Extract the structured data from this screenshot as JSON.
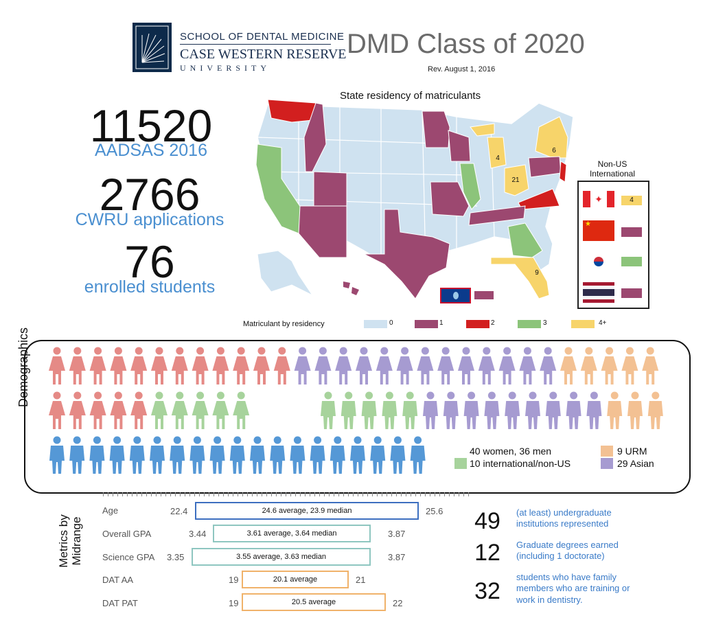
{
  "header": {
    "school": "SCHOOL OF DENTAL MEDICINE",
    "university_line1": "CASE WESTERN RESERVE",
    "university_line2": "UNIVERSITY",
    "title": "DMD Class of 2020",
    "revision": "Rev. August 1, 2016"
  },
  "stats_left": [
    {
      "number": "11520",
      "label": "AADSAS 2016"
    },
    {
      "number": "2766",
      "label": "CWRU applications"
    },
    {
      "number": "76",
      "label": "enrolled students"
    }
  ],
  "map": {
    "title": "State residency of matriculants",
    "state_counts": {
      "mi": "4",
      "oh": "21",
      "ny": "6",
      "fl": "9"
    },
    "non_us_title_1": "Non-US",
    "non_us_title_2": "International",
    "international_counts": [
      {
        "country": "Canada",
        "value": "4"
      },
      {
        "country": "China",
        "value": ""
      },
      {
        "country": "South Korea",
        "value": ""
      },
      {
        "country": "Thailand",
        "value": ""
      }
    ]
  },
  "legend": {
    "label": "Matriculant by residency",
    "items": [
      {
        "text": "0",
        "color": "#cfe2f0"
      },
      {
        "text": "1",
        "color": "#9c4870"
      },
      {
        "text": "2",
        "color": "#d21f1f"
      },
      {
        "text": "3",
        "color": "#8cc47a"
      },
      {
        "text": "4+",
        "color": "#f7d46a"
      }
    ]
  },
  "demographics": {
    "label": "Demographics",
    "gender": "40 women, 36 men",
    "international": "10 international/non-US",
    "urm": "9 URM",
    "asian": "29 Asian",
    "colors": {
      "red": "#e58a86",
      "purple": "#a69bd1",
      "orange": "#f3c193",
      "green": "#a7d39c",
      "blue": "#5598d6"
    }
  },
  "metrics": {
    "label_1": "Metrics by",
    "label_2": "Midrange",
    "rows": [
      {
        "label": "Age",
        "min": "22.4",
        "max": "25.6",
        "text": "24.6 average, 23.9 median",
        "color": "#3d6fc0"
      },
      {
        "label": "Overall GPA",
        "min": "3.44",
        "max": "3.87",
        "text": "3.61 average, 3.64 median",
        "color": "#8ec6c0"
      },
      {
        "label": "Science GPA",
        "min": "3.35",
        "max": "3.87",
        "text": "3.55 average, 3.63 median",
        "color": "#8ec6c0"
      },
      {
        "label": "DAT AA",
        "min": "19",
        "max": "21",
        "text": "20.1 average",
        "color": "#f0b26a"
      },
      {
        "label": "DAT PAT",
        "min": "19",
        "max": "22",
        "text": "20.5 average",
        "color": "#f0b26a"
      }
    ]
  },
  "stats_right": [
    {
      "number": "49",
      "line1": "(at least) undergraduate",
      "line2": "institutions represented",
      "line3": ""
    },
    {
      "number": "12",
      "line1": "Graduate degrees earned",
      "line2": "(including 1 doctorate)",
      "line3": ""
    },
    {
      "number": "32",
      "line1": "students who have family",
      "line2": "members who are training or",
      "line3": "work in dentistry."
    }
  ]
}
